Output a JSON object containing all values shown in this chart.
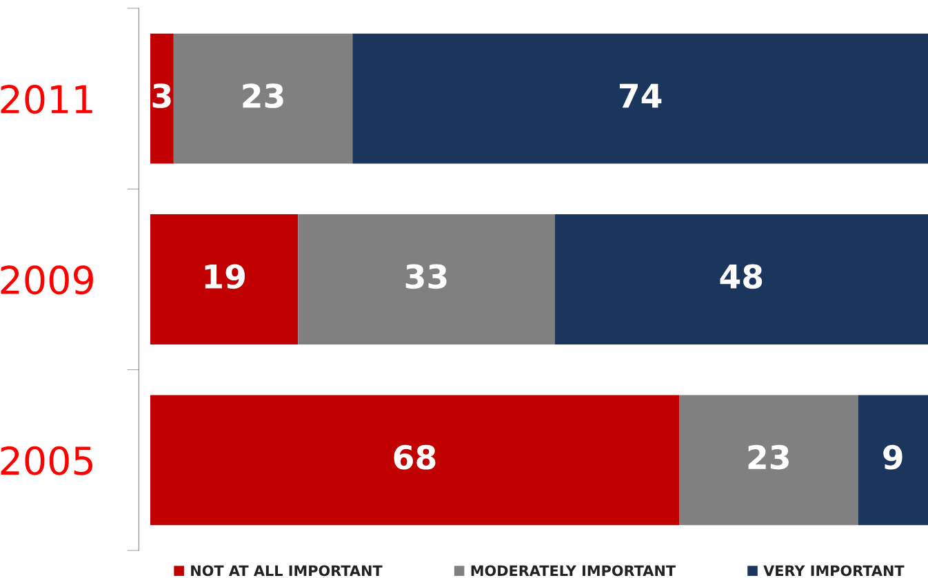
{
  "chart_data": {
    "type": "bar",
    "orientation": "horizontal",
    "stacked": true,
    "categories": [
      "2011",
      "2009",
      "2005"
    ],
    "series": [
      {
        "name": "NOT AT ALL IMPORTANT",
        "color": "#c00000",
        "values": [
          3,
          19,
          68
        ]
      },
      {
        "name": "MODERATELY IMPORTANT",
        "color": "#808080",
        "values": [
          23,
          33,
          23
        ]
      },
      {
        "name": "VERY IMPORTANT",
        "color": "#1a365d",
        "values": [
          74,
          48,
          9
        ]
      }
    ],
    "xlim": [
      0,
      100
    ],
    "data_labels": true,
    "legend": "bottom",
    "tick_labels": "y",
    "grid": false
  }
}
